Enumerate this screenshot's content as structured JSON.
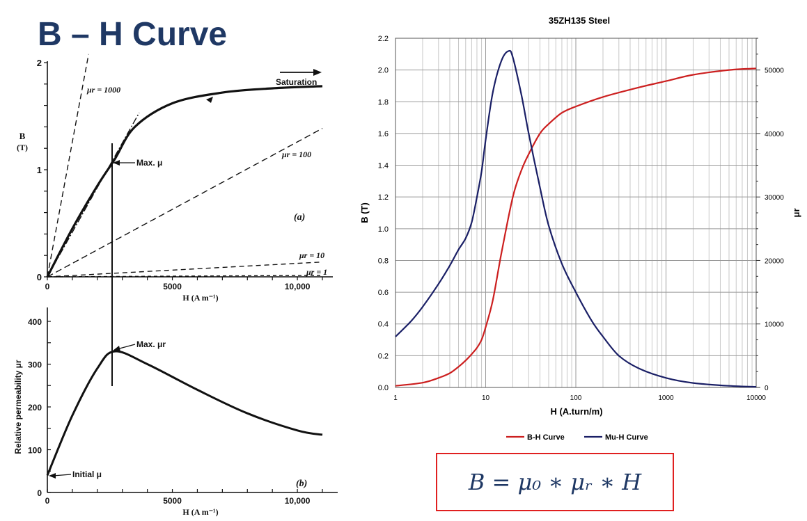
{
  "slide": {
    "title": "B – H Curve"
  },
  "formula": {
    "text": "B = μ₀ ∗ μᵣ ∗ H"
  },
  "chart_data": [
    {
      "type": "line",
      "panel": "(a)",
      "title": "",
      "xlabel": "H (A m⁻¹)",
      "ylabel": "B (T)",
      "xlim": [
        0,
        11000
      ],
      "ylim": [
        0,
        2
      ],
      "xtick_labels": [
        "0",
        "5000",
        "10,000"
      ],
      "ytick_labels": [
        "0",
        "1",
        "2"
      ],
      "x": [
        0,
        1000,
        2000,
        2700,
        3500,
        5000,
        7000,
        9000,
        11000
      ],
      "series": [
        {
          "name": "",
          "values": [
            0,
            0.45,
            0.85,
            1.1,
            1.4,
            1.62,
            1.72,
            1.76,
            1.78
          ]
        }
      ],
      "reference_lines": [
        {
          "label": "μr = 1000",
          "slope_T_per_Am": 0.00126
        },
        {
          "label": "μr = 100",
          "slope_T_per_Am": 0.000126
        },
        {
          "label": "μr = 10",
          "slope_T_per_Am": 1.26e-05
        },
        {
          "label": "μr = 1",
          "slope_T_per_Am": 1.26e-06
        }
      ],
      "annotations": [
        "Saturation",
        "Max. μ",
        "(a)"
      ]
    },
    {
      "type": "line",
      "panel": "(b)",
      "title": "",
      "xlabel": "H (A m⁻¹)",
      "ylabel": "Relative permeability μr",
      "xlim": [
        0,
        11000
      ],
      "ylim": [
        0,
        400
      ],
      "xtick_labels": [
        "0",
        "5000",
        "10,000"
      ],
      "ytick_labels": [
        "0",
        "100",
        "200",
        "300",
        "400"
      ],
      "x": [
        0,
        1000,
        2000,
        2700,
        4000,
        6000,
        8000,
        10000,
        11000
      ],
      "series": [
        {
          "name": "",
          "values": [
            40,
            180,
            290,
            330,
            300,
            240,
            185,
            145,
            135
          ]
        }
      ],
      "annotations": [
        "Max. μr",
        "Initial μ",
        "(b)"
      ]
    },
    {
      "type": "line",
      "title": "35ZH135 Steel",
      "xlabel": "H (A.turn/m)",
      "ylabel": "B (T)",
      "y2label": "μr",
      "xscale": "log",
      "xlim": [
        1,
        10000
      ],
      "ylim": [
        0,
        2.2
      ],
      "y2lim": [
        0,
        55000
      ],
      "grid": true,
      "legend": "bottom",
      "xtick_labels": [
        "1",
        "10",
        "100",
        "1000",
        "10000"
      ],
      "ytick_labels": [
        "0.0",
        "0.2",
        "0.4",
        "0.6",
        "0.8",
        "1.0",
        "1.2",
        "1.4",
        "1.6",
        "1.8",
        "2.0",
        "2.2"
      ],
      "y2tick_labels": [
        "0",
        "10000",
        "20000",
        "30000",
        "40000",
        "50000"
      ],
      "series": [
        {
          "name": "B-H Curve",
          "axis": "left",
          "color": "#cc1f1f",
          "x": [
            1,
            2,
            3,
            4,
            5,
            6,
            7,
            8,
            9,
            10,
            12,
            15,
            20,
            25,
            30,
            40,
            50,
            70,
            100,
            200,
            500,
            1000,
            2000,
            5000,
            10000
          ],
          "values": [
            0.01,
            0.03,
            0.06,
            0.09,
            0.13,
            0.17,
            0.21,
            0.25,
            0.3,
            0.38,
            0.55,
            0.85,
            1.2,
            1.37,
            1.47,
            1.6,
            1.66,
            1.73,
            1.77,
            1.83,
            1.89,
            1.93,
            1.97,
            2.0,
            2.01
          ]
        },
        {
          "name": "Mu-H Curve",
          "axis": "right",
          "color": "#1a1f66",
          "x": [
            1,
            1.5,
            2,
            3,
            4,
            5,
            6,
            7,
            8,
            9,
            10,
            12,
            15,
            18,
            20,
            25,
            30,
            40,
            50,
            70,
            100,
            150,
            200,
            300,
            500,
            1000,
            2000,
            5000,
            10000
          ],
          "values": [
            8000,
            10500,
            12700,
            16300,
            19200,
            21700,
            23500,
            26000,
            30000,
            34000,
            39000,
            46500,
            51500,
            53000,
            52000,
            46000,
            40000,
            31500,
            25500,
            19500,
            15000,
            10500,
            8000,
            5000,
            3000,
            1500,
            700,
            250,
            100
          ]
        }
      ]
    }
  ]
}
